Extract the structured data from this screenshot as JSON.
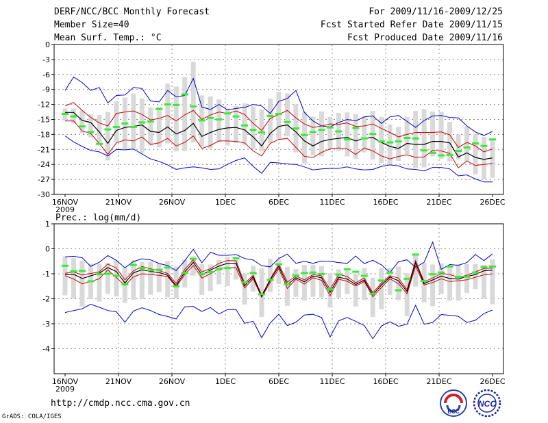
{
  "header": {
    "title": "DERF/NCC/BCC Monthly Forecast",
    "member_size": "Member Size=40",
    "variable": "Mean Surf. Temp.: °C",
    "period": "For 2009/11/16-2009/12/25",
    "refer_date": "Fcst Started Refer Date 2009/11/15",
    "produced_date": "Fcst Produced Date 2009/11/16"
  },
  "footer": {
    "url": "http://cmdp.ncc.cma.gov.cn",
    "credit": "GrADS: COLA/IGES",
    "logo_left_text": "BCC",
    "logo_right_text": "NCC"
  },
  "colors": {
    "mean": "#000000",
    "inner_band": "#cc0000",
    "outer_band": "#0000cc",
    "box": "#d9d9d9",
    "marker": "#33ee33",
    "grid": "#888888"
  },
  "chart_data": [
    {
      "type": "line",
      "title": "Mean Surf. Temp.: °C",
      "x_ticks": [
        "16NOV",
        "21NOV",
        "26NOV",
        "1DEC",
        "6DEC",
        "11DEC",
        "16DEC",
        "21DEC",
        "26DEC"
      ],
      "x_tick_year": "2009",
      "ylim": [
        -30,
        0
      ],
      "yticks": [
        0,
        -3,
        -6,
        -9,
        -12,
        -15,
        -18,
        -21,
        -24,
        -27,
        -30
      ],
      "series": [
        {
          "name": "max",
          "values": [
            -9.2,
            -6.5,
            -7.6,
            -9.2,
            -8.6,
            -11.7,
            -10.2,
            -10.1,
            -8.6,
            -8.8,
            -11.3,
            -11.5,
            -9.2,
            -10.5,
            -10.2,
            -6.8,
            -12.5,
            -13.0,
            -12.0,
            -13.1,
            -12.8,
            -12.6,
            -12.0,
            -12.3,
            -13.8,
            -11.4,
            -10.8,
            -9.2,
            -13.6,
            -15.3,
            -16.3,
            -16.5,
            -15.6,
            -15.0,
            -15.3,
            -14.5,
            -14.3,
            -15.8,
            -14.5,
            -14.2,
            -15.4,
            -16.6,
            -15.2,
            -14.3,
            -14.2,
            -14.6,
            -14.7,
            -16.3,
            -17.5,
            -18.2,
            -17.4
          ]
        },
        {
          "name": "upper",
          "values": [
            -12.3,
            -11.6,
            -13.2,
            -14.6,
            -15.7,
            -16.3,
            -13.8,
            -13.5,
            -13.3,
            -14.0,
            -15.1,
            -14.8,
            -14.2,
            -15.3,
            -14.1,
            -13.2,
            -15.0,
            -14.1,
            -13.5,
            -13.8,
            -13.3,
            -14.0,
            -15.8,
            -17.2,
            -14.8,
            -14.0,
            -13.2,
            -14.7,
            -15.9,
            -16.6,
            -16.3,
            -15.9,
            -16.0,
            -15.7,
            -16.4,
            -16.3,
            -15.9,
            -16.8,
            -17.6,
            -18.5,
            -18.0,
            -17.6,
            -17.6,
            -17.6,
            -17.5,
            -18.1,
            -20.6,
            -19.6,
            -20.3,
            -21.5,
            -20.9
          ]
        },
        {
          "name": "mean",
          "values": [
            -13.6,
            -13.6,
            -15.2,
            -15.6,
            -17.5,
            -19.8,
            -17.2,
            -16.6,
            -16.4,
            -16.1,
            -17.4,
            -17.6,
            -16.5,
            -17.9,
            -17.2,
            -15.8,
            -18.4,
            -17.6,
            -17.0,
            -16.7,
            -16.6,
            -17.1,
            -18.5,
            -20.3,
            -17.8,
            -16.4,
            -16.1,
            -17.5,
            -19.3,
            -20.3,
            -19.4,
            -19.0,
            -18.8,
            -18.6,
            -19.3,
            -18.8,
            -18.6,
            -19.6,
            -20.4,
            -20.8,
            -19.8,
            -20.0,
            -20.0,
            -19.4,
            -19.4,
            -19.7,
            -22.5,
            -21.7,
            -22.6,
            -23.0,
            -22.7
          ]
        },
        {
          "name": "lower",
          "values": [
            -15.3,
            -15.3,
            -17.3,
            -17.8,
            -19.8,
            -22.0,
            -19.7,
            -19.1,
            -19.3,
            -18.5,
            -20.0,
            -19.7,
            -18.8,
            -20.3,
            -19.6,
            -18.3,
            -20.8,
            -20.2,
            -19.3,
            -19.3,
            -19.4,
            -19.7,
            -21.3,
            -22.3,
            -19.8,
            -19.0,
            -18.8,
            -20.6,
            -22.4,
            -22.6,
            -21.6,
            -20.9,
            -20.7,
            -20.9,
            -22.0,
            -20.7,
            -21.3,
            -22.3,
            -22.9,
            -22.4,
            -22.1,
            -22.6,
            -22.5,
            -21.2,
            -21.3,
            -21.8,
            -24.7,
            -23.3,
            -24.2,
            -24.0,
            -23.8
          ]
        },
        {
          "name": "min",
          "values": [
            -18.3,
            -19.5,
            -20.4,
            -21.2,
            -21.5,
            -22.3,
            -21.0,
            -21.1,
            -20.9,
            -21.9,
            -22.9,
            -23.4,
            -24.1,
            -25.0,
            -24.7,
            -24.5,
            -24.7,
            -25.0,
            -24.9,
            -24.0,
            -23.2,
            -22.7,
            -24.4,
            -25.8,
            -23.6,
            -23.7,
            -23.9,
            -24.0,
            -24.5,
            -25.1,
            -24.9,
            -24.8,
            -24.8,
            -24.5,
            -24.9,
            -25.1,
            -25.0,
            -24.4,
            -24.1,
            -24.3,
            -24.9,
            -25.0,
            -25.3,
            -24.6,
            -24.6,
            -24.9,
            -26.3,
            -26.1,
            -26.9,
            -27.5,
            -27.5
          ]
        },
        {
          "name": "box_high",
          "values": [
            -12.8,
            -12.8,
            -13.2,
            -14.0,
            -14.1,
            -13.5,
            -11.4,
            -10.6,
            -9.8,
            -10.8,
            -12.6,
            -12.5,
            -7.8,
            -8.4,
            -6.5,
            -3.5,
            -10.2,
            -10.4,
            -11.0,
            -12.8,
            -12.3,
            -11.8,
            -12.4,
            -13.0,
            -10.8,
            -9.5,
            -9.8,
            -12.0,
            -13.5,
            -14.4,
            -13.4,
            -14.5,
            -13.7,
            -13.6,
            -13.9,
            -14.4,
            -13.3,
            -14.5,
            -16.0,
            -16.5,
            -14.5,
            -13.3,
            -12.9,
            -13.4,
            -13.5,
            -15.5,
            -18.0,
            -16.4,
            -17.9,
            -18.5,
            -18.9
          ]
        },
        {
          "name": "box_low",
          "values": [
            -15.2,
            -15.8,
            -17.8,
            -18.6,
            -19.7,
            -23.2,
            -19.5,
            -21.1,
            -20.8,
            -21.7,
            -20.2,
            -20.6,
            -19.8,
            -21.4,
            -21.3,
            -19.6,
            -20.4,
            -20.8,
            -19.5,
            -20.2,
            -19.7,
            -20.1,
            -21.0,
            -21.4,
            -19.7,
            -18.9,
            -18.4,
            -21.6,
            -23.8,
            -22.2,
            -22.4,
            -20.9,
            -21.3,
            -22.4,
            -22.9,
            -21.6,
            -23.0,
            -23.7,
            -24.0,
            -23.3,
            -22.0,
            -24.7,
            -24.6,
            -22.4,
            -22.9,
            -23.4,
            -23.0,
            -23.3,
            -26.0,
            -27.0,
            -26.7
          ]
        },
        {
          "name": "marker",
          "values": [
            -13.9,
            -14.4,
            -16.4,
            -17.5,
            -19.9,
            -17.0,
            -16.5,
            -15.8,
            -16.5,
            -15.6,
            -15.4,
            -12.9,
            -12.0,
            -12.1,
            -10.0,
            -12.4,
            -15.2,
            -14.7,
            -15.0,
            -13.8,
            -14.4,
            -16.2,
            -17.1,
            -17.6,
            -14.3,
            -13.9,
            -15.5,
            -16.8,
            -18.1,
            -17.5,
            -17.1,
            -16.6,
            -17.4,
            -19.0,
            -16.7,
            -18.8,
            -17.9,
            -19.4,
            -19.6,
            -19.4,
            -18.7,
            -18.8,
            -21.2,
            -21.7,
            -22.2,
            -22.1,
            -21.3,
            -20.6,
            -19.8,
            -20.3,
            -19.0
          ]
        }
      ]
    },
    {
      "type": "line",
      "title": "Prec.: log(mm/d)",
      "x_ticks": [
        "16NOV",
        "21NOV",
        "26NOV",
        "1DEC",
        "6DEC",
        "11DEC",
        "16DEC",
        "21DEC",
        "26DEC"
      ],
      "x_tick_year": "2009",
      "ylim": [
        -5,
        1
      ],
      "yticks": [
        1,
        0,
        -1,
        -2,
        -3,
        -4
      ],
      "series": [
        {
          "name": "max",
          "values": [
            -0.32,
            -0.3,
            -0.36,
            -0.7,
            -0.54,
            -0.27,
            -0.46,
            -0.76,
            -0.51,
            -0.4,
            -0.44,
            -0.59,
            -0.67,
            -0.87,
            -0.48,
            -0.02,
            -0.56,
            -0.14,
            -0.26,
            -0.26,
            -0.23,
            -0.39,
            -0.45,
            -0.68,
            -0.72,
            -0.39,
            -0.21,
            -0.58,
            -0.5,
            -0.58,
            -0.49,
            -0.5,
            -0.55,
            -0.58,
            -0.29,
            -0.59,
            -0.46,
            -0.64,
            -0.95,
            -0.52,
            -0.44,
            -0.74,
            -0.54,
            0.27,
            -0.82,
            -0.63,
            -0.66,
            -0.55,
            -0.23,
            -0.47,
            -0.2
          ]
        },
        {
          "name": "upper",
          "values": [
            -0.98,
            -0.93,
            -1.05,
            -0.99,
            -0.92,
            -0.61,
            -0.77,
            -1.24,
            -0.88,
            -0.71,
            -0.8,
            -0.87,
            -0.99,
            -1.38,
            -0.82,
            -0.44,
            -0.93,
            -0.79,
            -0.58,
            -0.47,
            -0.48,
            -1.38,
            -1.06,
            -1.87,
            -1.21,
            -0.61,
            -1.33,
            -1.09,
            -1.24,
            -1.03,
            -1.08,
            -1.62,
            -1.03,
            -1.11,
            -1.36,
            -1.17,
            -1.76,
            -1.37,
            -1.08,
            -1.17,
            -1.63,
            -0.47,
            -1.32,
            -1.17,
            -0.99,
            -1.03,
            -1.14,
            -1.06,
            -0.92,
            -0.79,
            -0.77
          ]
        },
        {
          "name": "mean",
          "values": [
            -1.03,
            -1.02,
            -1.19,
            -1.08,
            -0.98,
            -0.75,
            -0.91,
            -1.37,
            -0.96,
            -0.84,
            -0.91,
            -0.95,
            -1.06,
            -1.47,
            -0.93,
            -0.54,
            -1.05,
            -0.85,
            -0.69,
            -0.58,
            -0.58,
            -1.48,
            -1.12,
            -1.9,
            -1.25,
            -0.7,
            -1.44,
            -1.16,
            -1.32,
            -1.09,
            -1.16,
            -1.74,
            -1.14,
            -1.21,
            -1.43,
            -1.25,
            -1.84,
            -1.45,
            -1.13,
            -1.28,
            -1.71,
            -0.56,
            -1.39,
            -1.25,
            -1.09,
            -1.19,
            -1.21,
            -1.11,
            -1.03,
            -0.88,
            -0.85
          ]
        },
        {
          "name": "lower",
          "values": [
            -1.08,
            -1.21,
            -1.4,
            -1.31,
            -1.2,
            -0.84,
            -1.15,
            -1.47,
            -1.12,
            -1.0,
            -1.03,
            -1.06,
            -1.11,
            -1.53,
            -1.03,
            -0.67,
            -1.17,
            -1.0,
            -0.79,
            -0.75,
            -0.76,
            -1.57,
            -1.2,
            -1.94,
            -1.34,
            -0.79,
            -1.59,
            -1.22,
            -1.41,
            -1.16,
            -1.26,
            -1.88,
            -1.22,
            -1.3,
            -1.49,
            -1.31,
            -1.92,
            -1.55,
            -1.2,
            -1.4,
            -1.8,
            -0.69,
            -1.45,
            -1.35,
            -1.2,
            -1.31,
            -1.28,
            -1.24,
            -1.14,
            -1.04,
            -1.0
          ]
        },
        {
          "name": "min",
          "values": [
            -2.55,
            -2.47,
            -2.4,
            -2.22,
            -2.34,
            -2.47,
            -2.52,
            -2.94,
            -2.49,
            -2.36,
            -2.47,
            -2.63,
            -2.71,
            -2.81,
            -2.32,
            -2.31,
            -2.51,
            -2.35,
            -2.61,
            -2.43,
            -2.43,
            -2.98,
            -2.9,
            -3.56,
            -2.97,
            -2.62,
            -3.07,
            -2.94,
            -2.65,
            -2.62,
            -2.75,
            -3.53,
            -2.88,
            -2.75,
            -2.9,
            -3.07,
            -3.6,
            -3.09,
            -2.92,
            -3.1,
            -3.02,
            -2.26,
            -3.02,
            -2.95,
            -2.63,
            -2.66,
            -2.7,
            -2.95,
            -2.86,
            -2.59,
            -2.45
          ]
        },
        {
          "name": "box_high",
          "values": [
            -0.31,
            -0.38,
            -0.48,
            -0.59,
            -0.6,
            -0.56,
            -0.45,
            -0.76,
            -0.45,
            -0.52,
            -0.51,
            -0.58,
            -0.49,
            -0.71,
            -0.43,
            -0.3,
            -0.62,
            -0.63,
            -0.45,
            -0.32,
            -0.43,
            -1.0,
            -0.68,
            -0.78,
            -0.4,
            -0.43,
            -0.72,
            -0.81,
            -0.65,
            -0.64,
            -0.69,
            -0.98,
            -0.82,
            -0.87,
            -0.99,
            -0.78,
            -1.16,
            -0.77,
            -0.78,
            -0.71,
            -0.98,
            -0.26,
            -0.57,
            -0.63,
            -0.58,
            -0.7,
            -0.61,
            -0.61,
            -0.6,
            -0.64,
            -0.42
          ]
        },
        {
          "name": "box_low",
          "values": [
            -1.86,
            -1.98,
            -2.31,
            -2.02,
            -2.11,
            -1.8,
            -1.91,
            -2.16,
            -2.04,
            -2.02,
            -1.84,
            -1.73,
            -1.94,
            -1.99,
            -1.55,
            -1.08,
            -1.85,
            -1.69,
            -1.42,
            -1.49,
            -1.23,
            -2.23,
            -1.71,
            -2.73,
            -1.72,
            -1.41,
            -2.28,
            -1.92,
            -2.07,
            -1.92,
            -1.95,
            -2.35,
            -1.97,
            -1.81,
            -2.31,
            -2.05,
            -2.73,
            -2.42,
            -1.85,
            -2.06,
            -2.7,
            -1.51,
            -2.14,
            -2.3,
            -1.81,
            -2.07,
            -2.07,
            -1.77,
            -1.61,
            -2.0,
            -2.22
          ]
        },
        {
          "name": "marker",
          "values": [
            -0.68,
            -0.9,
            -0.88,
            -1.3,
            -1.02,
            -1.0,
            -1.08,
            -1.42,
            -0.65,
            -0.77,
            -0.86,
            -0.84,
            -0.75,
            -1.5,
            -0.96,
            -0.4,
            -1.01,
            -0.93,
            -0.82,
            -0.77,
            -0.38,
            -1.34,
            -0.97,
            -1.82,
            -1.24,
            -0.62,
            -1.42,
            -1.07,
            -0.97,
            -0.95,
            -1.01,
            -1.62,
            -1.03,
            -0.82,
            -0.92,
            -1.08,
            -1.8,
            -1.27,
            -0.95,
            -1.66,
            -1.2,
            -0.23,
            -1.29,
            -1.02,
            -0.95,
            -0.71,
            -1.12,
            -1.12,
            -0.95,
            -0.73,
            -0.71
          ]
        }
      ]
    }
  ]
}
